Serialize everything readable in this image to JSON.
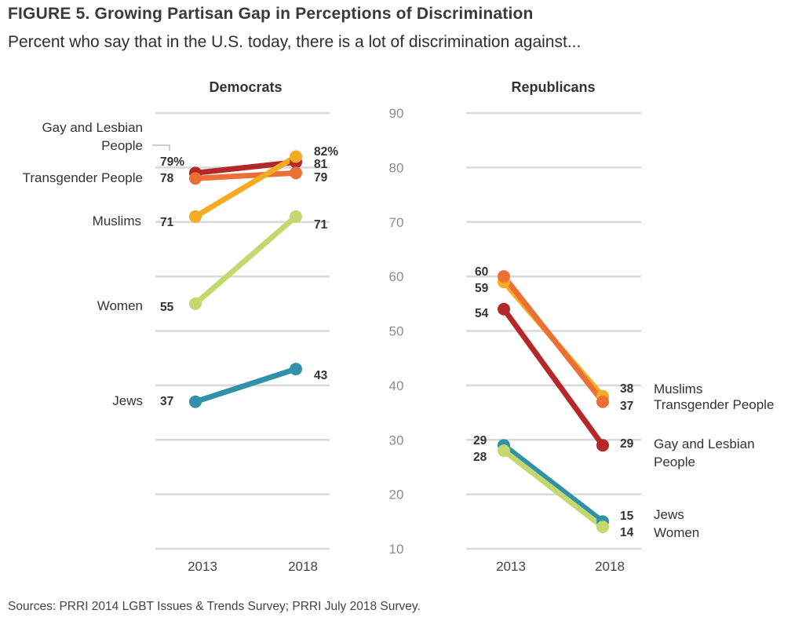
{
  "title": "FIGURE 5.  Growing Partisan Gap in Perceptions of Discrimination",
  "subtitle": "Percent who say that in the U.S. today, there is a lot of discrimination against...",
  "source": "Sources: PRRI 2014 LGBT Issues & Trends Survey; PRRI July 2018 Survey.",
  "chart_data": [
    {
      "type": "line",
      "title": "Democrats",
      "x": [
        "2013",
        "2018"
      ],
      "ylim": [
        10,
        90
      ],
      "series": [
        {
          "name": "Gay and Lesbian People",
          "color": "#b5282a",
          "values": [
            79,
            81
          ],
          "labels": [
            "79%",
            "81"
          ]
        },
        {
          "name": "Transgender People",
          "color": "#ec6f35",
          "values": [
            78,
            79
          ],
          "labels": [
            "78",
            "79"
          ]
        },
        {
          "name": "Muslims",
          "color": "#f5ab23",
          "values": [
            71,
            82
          ],
          "labels": [
            "71",
            "82%"
          ]
        },
        {
          "name": "Women",
          "color": "#c3d96f",
          "values": [
            55,
            71
          ],
          "labels": [
            "55",
            "71"
          ]
        },
        {
          "name": "Jews",
          "color": "#3191ab",
          "values": [
            37,
            43
          ],
          "labels": [
            "37",
            "43"
          ]
        }
      ]
    },
    {
      "type": "line",
      "title": "Republicans",
      "x": [
        "2013",
        "2018"
      ],
      "ylim": [
        10,
        90
      ],
      "yticks": [
        "90",
        "80",
        "70",
        "60",
        "50",
        "40",
        "30",
        "20",
        "10"
      ],
      "series": [
        {
          "name": "Gay and Lesbian People",
          "color": "#b5282a",
          "values": [
            54,
            29
          ],
          "labels": [
            "54",
            "29"
          ]
        },
        {
          "name": "Muslims",
          "color": "#f5ab23",
          "values": [
            59,
            38
          ],
          "labels": [
            "59",
            "38"
          ]
        },
        {
          "name": "Transgender People",
          "color": "#ec6f35",
          "values": [
            60,
            37
          ],
          "labels": [
            "60",
            "37"
          ]
        },
        {
          "name": "Jews",
          "color": "#3191ab",
          "values": [
            29,
            15
          ],
          "labels": [
            "29",
            "15"
          ]
        },
        {
          "name": "Women",
          "color": "#c3d96f",
          "values": [
            28,
            14
          ],
          "labels": [
            "28",
            "14"
          ]
        }
      ]
    }
  ]
}
